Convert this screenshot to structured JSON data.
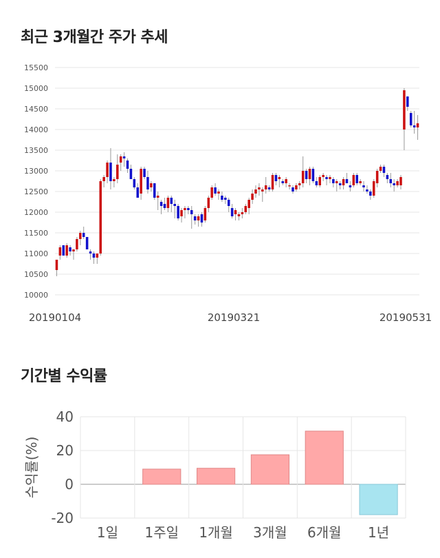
{
  "sections": {
    "price_trend_title": "최근 3개월간 주가 추세",
    "returns_title": "기간별 수익률"
  },
  "colors": {
    "up": "#cc1111",
    "down": "#1111cc",
    "positive_bar": "#ffa8a8",
    "negative_bar": "#a8e4f0",
    "grid": "#e6e6e6"
  },
  "chart_data": [
    {
      "type": "candlestick",
      "title": "최근 3개월간 주가 추세",
      "ylim": [
        10000,
        15500
      ],
      "y_ticks": [
        10000,
        10500,
        11000,
        11500,
        12000,
        12500,
        13000,
        13500,
        14000,
        14500,
        15000,
        15500
      ],
      "x_tick_labels": [
        "20190104",
        "20190321",
        "20190531"
      ],
      "grid": "horizontal",
      "candles": [
        [
          10600,
          10850,
          10450,
          10850
        ],
        [
          10950,
          11200,
          10850,
          11150
        ],
        [
          11200,
          11200,
          10950,
          10950
        ],
        [
          10950,
          11250,
          10900,
          11200
        ],
        [
          11150,
          11200,
          10950,
          11050
        ],
        [
          11050,
          11100,
          10850,
          11100
        ],
        [
          11100,
          11400,
          11050,
          11350
        ],
        [
          11350,
          11550,
          11200,
          11500
        ],
        [
          11500,
          11650,
          11350,
          11400
        ],
        [
          11400,
          11400,
          11100,
          11100
        ],
        [
          11050,
          11100,
          10850,
          11000
        ],
        [
          11000,
          11050,
          10750,
          10900
        ],
        [
          10900,
          11000,
          10750,
          11000
        ],
        [
          11000,
          12800,
          10950,
          12750
        ],
        [
          12750,
          12900,
          12600,
          12850
        ],
        [
          12850,
          13250,
          12700,
          13200
        ],
        [
          13200,
          13550,
          12550,
          12750
        ],
        [
          12750,
          12850,
          12600,
          12800
        ],
        [
          12800,
          13400,
          12700,
          13150
        ],
        [
          13200,
          13400,
          13000,
          13350
        ],
        [
          13350,
          13450,
          13100,
          13300
        ],
        [
          13250,
          13300,
          12950,
          13050
        ],
        [
          13050,
          13150,
          12800,
          12800
        ],
        [
          12800,
          12850,
          12550,
          12600
        ],
        [
          12600,
          12700,
          12350,
          12350
        ],
        [
          12450,
          13100,
          12300,
          13050
        ],
        [
          13050,
          13100,
          12800,
          12850
        ],
        [
          12850,
          13000,
          12450,
          12550
        ],
        [
          12600,
          12750,
          12500,
          12700
        ],
        [
          12700,
          12700,
          12300,
          12350
        ],
        [
          12350,
          12500,
          12050,
          12400
        ],
        [
          12250,
          12300,
          11950,
          12150
        ],
        [
          12200,
          12350,
          12050,
          12100
        ],
        [
          12100,
          12400,
          12000,
          12350
        ],
        [
          12350,
          12400,
          12000,
          12200
        ],
        [
          12200,
          12300,
          11850,
          12150
        ],
        [
          12150,
          12200,
          11800,
          11850
        ],
        [
          11900,
          12100,
          11750,
          12050
        ],
        [
          12050,
          12150,
          11850,
          12100
        ],
        [
          12100,
          12150,
          11950,
          12050
        ],
        [
          12050,
          12150,
          11600,
          11950
        ],
        [
          11900,
          11950,
          11700,
          11800
        ],
        [
          11800,
          11950,
          11650,
          11900
        ],
        [
          11950,
          12000,
          11650,
          11750
        ],
        [
          11800,
          12150,
          11750,
          12100
        ],
        [
          12100,
          12400,
          12000,
          12350
        ],
        [
          12350,
          12650,
          12300,
          12600
        ],
        [
          12600,
          12700,
          12400,
          12450
        ],
        [
          12450,
          12550,
          12300,
          12500
        ],
        [
          12400,
          12500,
          12250,
          12300
        ],
        [
          12350,
          12400,
          12200,
          12300
        ],
        [
          12300,
          12350,
          12000,
          12150
        ],
        [
          12100,
          12200,
          11850,
          11900
        ],
        [
          11950,
          12100,
          11800,
          12050
        ],
        [
          11900,
          12000,
          11800,
          11950
        ],
        [
          11950,
          12100,
          11850,
          12000
        ],
        [
          12000,
          12200,
          11950,
          12150
        ],
        [
          12100,
          12350,
          11950,
          12300
        ],
        [
          12300,
          12550,
          12200,
          12450
        ],
        [
          12450,
          12650,
          12350,
          12550
        ],
        [
          12550,
          12700,
          12400,
          12600
        ],
        [
          12500,
          12600,
          12250,
          12550
        ],
        [
          12550,
          12850,
          12450,
          12650
        ],
        [
          12600,
          12650,
          12500,
          12550
        ],
        [
          12550,
          12950,
          12500,
          12900
        ],
        [
          12900,
          12950,
          12650,
          12750
        ],
        [
          12800,
          12900,
          12600,
          12850
        ],
        [
          12750,
          12800,
          12650,
          12700
        ],
        [
          12700,
          12850,
          12600,
          12800
        ],
        [
          12650,
          12700,
          12550,
          12650
        ],
        [
          12600,
          12650,
          12450,
          12500
        ],
        [
          12550,
          12700,
          12500,
          12650
        ],
        [
          12650,
          12750,
          12550,
          12700
        ],
        [
          12700,
          13350,
          12600,
          13000
        ],
        [
          13000,
          13050,
          12700,
          12800
        ],
        [
          12800,
          13100,
          12650,
          13050
        ],
        [
          13050,
          13100,
          12700,
          12750
        ],
        [
          12750,
          12850,
          12600,
          12650
        ],
        [
          12650,
          12900,
          12600,
          12850
        ],
        [
          12850,
          12950,
          12750,
          12900
        ],
        [
          12850,
          12900,
          12650,
          12800
        ],
        [
          12800,
          12900,
          12700,
          12850
        ],
        [
          12800,
          12850,
          12600,
          12700
        ],
        [
          12700,
          12800,
          12500,
          12750
        ],
        [
          12700,
          12750,
          12550,
          12650
        ],
        [
          12650,
          12850,
          12550,
          12800
        ],
        [
          12800,
          12950,
          12700,
          12700
        ],
        [
          12650,
          12750,
          12500,
          12600
        ],
        [
          12650,
          12950,
          12600,
          12900
        ],
        [
          12900,
          12950,
          12650,
          12700
        ],
        [
          12700,
          12800,
          12650,
          12750
        ],
        [
          12650,
          12750,
          12500,
          12600
        ],
        [
          12550,
          12650,
          12450,
          12500
        ],
        [
          12500,
          12550,
          12300,
          12400
        ],
        [
          12400,
          12800,
          12350,
          12750
        ],
        [
          12700,
          13050,
          12600,
          13000
        ],
        [
          13000,
          13150,
          12950,
          13100
        ],
        [
          13100,
          13150,
          12850,
          12950
        ],
        [
          12900,
          12950,
          12700,
          12800
        ],
        [
          12800,
          12950,
          12600,
          12700
        ],
        [
          12700,
          12800,
          12500,
          12650
        ],
        [
          12650,
          12800,
          12600,
          12750
        ],
        [
          12650,
          12900,
          12550,
          12850
        ],
        [
          14000,
          15000,
          13500,
          14950
        ],
        [
          14800,
          14800,
          14450,
          14550
        ],
        [
          14400,
          14450,
          14050,
          14100
        ],
        [
          14100,
          14450,
          13900,
          14050
        ],
        [
          14050,
          14350,
          13750,
          14150
        ]
      ]
    },
    {
      "type": "bar",
      "title": "기간별 수익률",
      "ylabel": "수익률(%)",
      "ylim": [
        -20,
        40
      ],
      "y_ticks": [
        -20,
        0,
        20,
        40
      ],
      "categories": [
        "1일",
        "1주일",
        "1개월",
        "3개월",
        "6개월",
        "1년"
      ],
      "values": [
        0,
        9,
        9.5,
        17.5,
        31.5,
        -18
      ]
    }
  ]
}
